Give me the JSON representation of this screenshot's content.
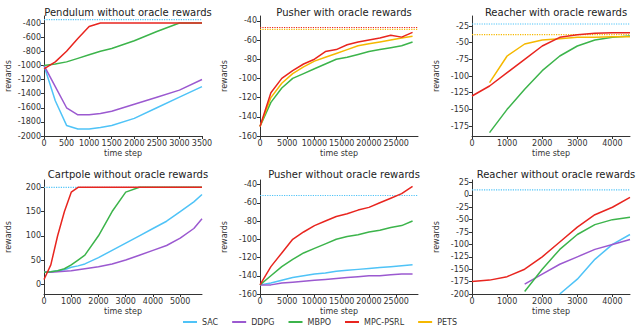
{
  "chart_data": [
    {
      "type": "line",
      "title": "Pendulum without oracle rewards",
      "xlabel": "time step",
      "ylabel": "rewards",
      "grid": false,
      "legend": "bottom",
      "x": [
        0,
        250,
        500,
        750,
        1000,
        1250,
        1500,
        2000,
        2500,
        3000,
        3500
      ],
      "xlim": [
        0,
        3500
      ],
      "xticks": [
        0,
        500,
        1000,
        1500,
        2000,
        2500,
        3000,
        3500
      ],
      "ylim": [
        -2000,
        -300
      ],
      "yticks": [
        -2000,
        -1800,
        -1600,
        -1400,
        -1200,
        -1000,
        -800,
        -600,
        -400
      ],
      "hlines": [
        {
          "y": -350,
          "color": "#4fc3f7",
          "line_style": "dotted"
        }
      ],
      "series": [
        {
          "name": "SAC",
          "color": "#4fc3f7",
          "line_style": "solid",
          "values": [
            -1000,
            -1500,
            -1850,
            -1900,
            -1900,
            -1880,
            -1850,
            -1750,
            -1600,
            -1450,
            -1300
          ]
        },
        {
          "name": "DDPG",
          "color": "#9b59d0",
          "line_style": "solid",
          "values": [
            -1000,
            -1300,
            -1600,
            -1700,
            -1700,
            -1680,
            -1650,
            -1550,
            -1450,
            -1350,
            -1200
          ]
        },
        {
          "name": "MBPO",
          "color": "#3cb44b",
          "line_style": "solid",
          "values": [
            -1000,
            -980,
            -950,
            -900,
            -850,
            -800,
            -760,
            -650,
            -520,
            -400,
            -400
          ]
        },
        {
          "name": "MPC-PSRL",
          "color": "#e8251f",
          "line_style": "solid",
          "values": [
            -1050,
            -950,
            -800,
            -620,
            -450,
            -400,
            -400,
            -400,
            -400,
            -400,
            -400
          ]
        }
      ]
    },
    {
      "type": "line",
      "title": "Pusher with oracle rewards",
      "xlabel": "time step",
      "ylabel": "rewards",
      "grid": false,
      "legend": "bottom",
      "x": [
        0,
        2000,
        4000,
        6000,
        8000,
        10000,
        12000,
        14000,
        16000,
        18000,
        20000,
        22000,
        24000,
        26000,
        28000
      ],
      "xlim": [
        0,
        29000
      ],
      "xticks": [
        0,
        5000,
        10000,
        15000,
        20000,
        25000
      ],
      "ylim": [
        -160,
        -35
      ],
      "yticks": [
        -160,
        -140,
        -120,
        -100,
        -80,
        -60,
        -40
      ],
      "hlines": [
        {
          "y": -47,
          "color": "#e8251f",
          "line_style": "dotted"
        },
        {
          "y": -49,
          "color": "#f5b800",
          "line_style": "dotted"
        }
      ],
      "series": [
        {
          "name": "MBPO",
          "color": "#3cb44b",
          "line_style": "solid",
          "values": [
            -150,
            -125,
            -110,
            -100,
            -95,
            -90,
            -85,
            -80,
            -78,
            -75,
            -72,
            -70,
            -68,
            -66,
            -62
          ]
        },
        {
          "name": "PETS",
          "color": "#f5b800",
          "line_style": "solid",
          "values": [
            -150,
            -120,
            -105,
            -95,
            -88,
            -82,
            -78,
            -74,
            -70,
            -66,
            -64,
            -62,
            -60,
            -58,
            -56
          ]
        },
        {
          "name": "MPC-PSRL",
          "color": "#e8251f",
          "line_style": "solid",
          "values": [
            -150,
            -115,
            -100,
            -92,
            -85,
            -80,
            -72,
            -70,
            -65,
            -62,
            -60,
            -58,
            -55,
            -57,
            -52
          ]
        }
      ]
    },
    {
      "type": "line",
      "title": "Reacher with oracle rewards",
      "xlabel": "time step",
      "ylabel": "rewards",
      "grid": false,
      "legend": "bottom",
      "x": [
        0,
        500,
        1000,
        1500,
        2000,
        2500,
        3000,
        3500,
        4000,
        4500
      ],
      "xlim": [
        0,
        4500
      ],
      "xticks": [
        0,
        1000,
        2000,
        3000,
        4000
      ],
      "ylim": [
        -190,
        -10
      ],
      "yticks": [
        -175,
        -150,
        -125,
        -100,
        -75,
        -50,
        -25
      ],
      "hlines": [
        {
          "y": -22,
          "color": "#4fc3f7",
          "line_style": "dotted"
        },
        {
          "y": -38,
          "color": "#f5b800",
          "line_style": "dotted"
        }
      ],
      "series": [
        {
          "name": "MBPO",
          "color": "#3cb44b",
          "line_style": "solid",
          "values": [
            null,
            -185,
            -150,
            -120,
            -92,
            -70,
            -55,
            -46,
            -42,
            -40
          ]
        },
        {
          "name": "PETS",
          "color": "#f5b800",
          "line_style": "solid",
          "values": [
            null,
            -110,
            -70,
            -52,
            -46,
            -44,
            -42,
            -42,
            -41,
            -41
          ]
        },
        {
          "name": "MPC-PSRL",
          "color": "#e8251f",
          "line_style": "solid",
          "values": [
            -130,
            -115,
            -95,
            -75,
            -55,
            -42,
            -38,
            -36,
            -35,
            -35
          ]
        }
      ]
    },
    {
      "type": "line",
      "title": "Cartpole without oracle rewards",
      "xlabel": "time step",
      "ylabel": "rewards",
      "grid": false,
      "legend": "bottom",
      "x": [
        0,
        250,
        500,
        750,
        1000,
        1250,
        1500,
        2000,
        2500,
        3000,
        3500,
        4000,
        4500,
        5000,
        5500,
        5800
      ],
      "xlim": [
        0,
        5800
      ],
      "xticks": [
        0,
        1000,
        2000,
        3000,
        4000,
        5000
      ],
      "ylim": [
        -20,
        215
      ],
      "yticks": [
        0,
        50,
        100,
        150,
        200
      ],
      "hlines": [
        {
          "y": 200,
          "color": "#4fc3f7",
          "line_style": "dotted"
        }
      ],
      "series": [
        {
          "name": "SAC",
          "color": "#4fc3f7",
          "line_style": "solid",
          "values": [
            25,
            26,
            28,
            30,
            35,
            38,
            42,
            55,
            70,
            85,
            100,
            115,
            130,
            150,
            170,
            185
          ]
        },
        {
          "name": "DDPG",
          "color": "#9b59d0",
          "line_style": "solid",
          "values": [
            25,
            25,
            26,
            27,
            28,
            30,
            32,
            36,
            42,
            50,
            60,
            70,
            80,
            95,
            115,
            135
          ]
        },
        {
          "name": "MBPO",
          "color": "#3cb44b",
          "line_style": "solid",
          "values": [
            25,
            26,
            28,
            32,
            40,
            50,
            60,
            100,
            150,
            190,
            200,
            200,
            200,
            200,
            200,
            200
          ]
        },
        {
          "name": "MPC-PSRL",
          "color": "#e8251f",
          "line_style": "solid",
          "values": [
            10,
            40,
            100,
            150,
            190,
            200,
            200,
            200,
            200,
            200,
            200,
            200,
            200,
            200,
            200,
            200
          ]
        }
      ]
    },
    {
      "type": "line",
      "title": "Pusher without oracle rewards",
      "xlabel": "time step",
      "ylabel": "rewards",
      "grid": false,
      "legend": "bottom",
      "x": [
        0,
        2000,
        4000,
        6000,
        8000,
        10000,
        12000,
        14000,
        16000,
        18000,
        20000,
        22000,
        24000,
        26000,
        28000
      ],
      "xlim": [
        0,
        29000
      ],
      "xticks": [
        0,
        5000,
        10000,
        15000,
        20000,
        25000
      ],
      "ylim": [
        -160,
        -35
      ],
      "yticks": [
        -160,
        -140,
        -120,
        -100,
        -80,
        -60,
        -40
      ],
      "hlines": [
        {
          "y": -52,
          "color": "#4fc3f7",
          "line_style": "dotted"
        }
      ],
      "series": [
        {
          "name": "SAC",
          "color": "#4fc3f7",
          "line_style": "solid",
          "values": [
            -150,
            -148,
            -145,
            -142,
            -140,
            -138,
            -137,
            -135,
            -134,
            -133,
            -132,
            -131,
            -130,
            -129,
            -128
          ]
        },
        {
          "name": "DDPG",
          "color": "#9b59d0",
          "line_style": "solid",
          "values": [
            -150,
            -150,
            -148,
            -147,
            -146,
            -145,
            -144,
            -143,
            -142,
            -141,
            -140,
            -140,
            -139,
            -138,
            -138
          ]
        },
        {
          "name": "MBPO",
          "color": "#3cb44b",
          "line_style": "solid",
          "values": [
            -150,
            -140,
            -130,
            -122,
            -115,
            -110,
            -105,
            -100,
            -97,
            -95,
            -92,
            -90,
            -87,
            -85,
            -80
          ]
        },
        {
          "name": "MPC-PSRL",
          "color": "#e8251f",
          "line_style": "solid",
          "values": [
            -150,
            -130,
            -115,
            -100,
            -92,
            -85,
            -80,
            -75,
            -72,
            -68,
            -65,
            -60,
            -55,
            -50,
            -42
          ]
        }
      ]
    },
    {
      "type": "line",
      "title": "Reacher without oracle rewards",
      "xlabel": "time step",
      "ylabel": "rewards",
      "grid": false,
      "legend": "bottom",
      "x": [
        0,
        500,
        1000,
        1500,
        2000,
        2500,
        3000,
        3500,
        4000,
        4500
      ],
      "xlim": [
        0,
        4500
      ],
      "xticks": [
        0,
        1000,
        2000,
        3000,
        4000
      ],
      "ylim": [
        -200,
        30
      ],
      "yticks": [
        -200,
        -175,
        -150,
        -125,
        -100,
        -75,
        -50,
        -25,
        0,
        25
      ],
      "hlines": [
        {
          "y": 10,
          "color": "#4fc3f7",
          "line_style": "dotted"
        }
      ],
      "series": [
        {
          "name": "SAC",
          "color": "#4fc3f7",
          "line_style": "solid",
          "values": [
            null,
            null,
            null,
            null,
            null,
            -200,
            -170,
            -130,
            -100,
            -80
          ]
        },
        {
          "name": "DDPG",
          "color": "#9b59d0",
          "line_style": "solid",
          "values": [
            null,
            null,
            null,
            -180,
            -160,
            -140,
            -125,
            -110,
            -100,
            -90
          ]
        },
        {
          "name": "MBPO",
          "color": "#3cb44b",
          "line_style": "solid",
          "values": [
            null,
            null,
            null,
            -195,
            -150,
            -110,
            -80,
            -60,
            -50,
            -45
          ]
        },
        {
          "name": "MPC-PSRL",
          "color": "#e8251f",
          "line_style": "solid",
          "values": [
            -175,
            -172,
            -165,
            -150,
            -125,
            -95,
            -65,
            -40,
            -25,
            -5
          ]
        }
      ]
    }
  ]
}
